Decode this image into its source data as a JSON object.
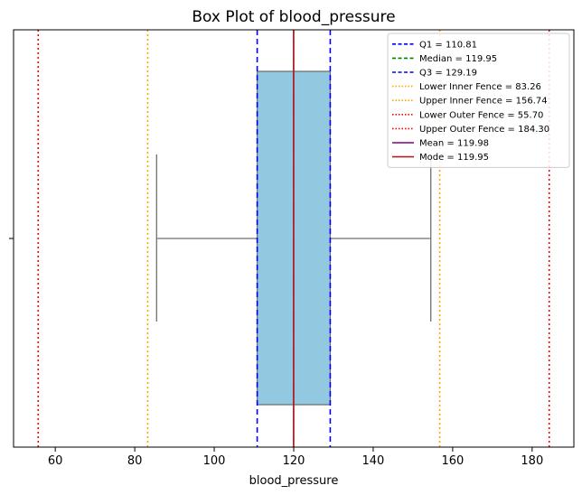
{
  "chart_data": {
    "type": "box",
    "title": "Box Plot of blood_pressure",
    "xlabel": "blood_pressure",
    "ylabel": "",
    "xlim": [
      49.5,
      190.5
    ],
    "x_ticks": [
      60,
      80,
      100,
      120,
      140,
      160,
      180
    ],
    "orientation": "horizontal",
    "grid": false,
    "box": {
      "q1": 110.81,
      "median": 119.95,
      "q3": 129.19,
      "whisker_low": 85.5,
      "whisker_high": 154.5,
      "fill_color": "#92c9e0",
      "edge_color": "#707070"
    },
    "reference_lines": [
      {
        "label": "Q1 = 110.81",
        "value": 110.81,
        "color": "#0000ff",
        "style": "dashed"
      },
      {
        "label": "Median = 119.95",
        "value": 119.95,
        "color": "#008000",
        "style": "dashed"
      },
      {
        "label": "Q3 = 129.19",
        "value": 129.19,
        "color": "#0000ff",
        "style": "dashed"
      },
      {
        "label": "Lower Inner Fence = 83.26",
        "value": 83.26,
        "color": "#ffa500",
        "style": "dotted"
      },
      {
        "label": "Upper Inner Fence = 156.74",
        "value": 156.74,
        "color": "#ffa500",
        "style": "dotted"
      },
      {
        "label": "Lower Outer Fence = 55.70",
        "value": 55.7,
        "color": "#ff0000",
        "style": "dotted"
      },
      {
        "label": "Upper Outer Fence = 184.30",
        "value": 184.3,
        "color": "#ff0000",
        "style": "dotted"
      },
      {
        "label": "Mean = 119.98",
        "value": 119.98,
        "color": "#800080",
        "style": "solid"
      },
      {
        "label": "Mode = 119.95",
        "value": 119.95,
        "color": "#b22222",
        "style": "solid"
      }
    ],
    "legend_position": "top-right"
  }
}
